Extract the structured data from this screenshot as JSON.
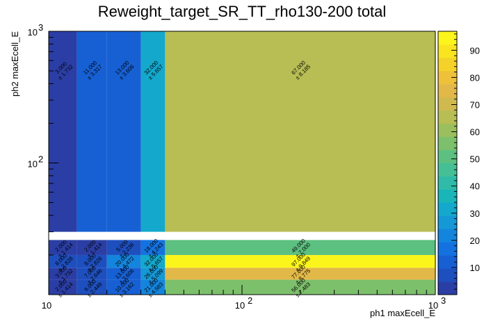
{
  "chart_data": {
    "type": "heatmap",
    "title": "Reweight_target_SR_TT_rho130-200 total",
    "xlabel": "ph1 maxEcell_E",
    "ylabel": "ph2 maxEcell_E",
    "xscale": "log",
    "yscale": "log",
    "xlim": [
      10,
      1000
    ],
    "ylim": [
      10,
      1000
    ],
    "x_edges": [
      10,
      14,
      20,
      30,
      40,
      1000
    ],
    "y_edges": [
      10,
      13,
      16,
      20,
      26,
      30,
      1000
    ],
    "x_ticks": [
      {
        "value": 10,
        "base": "10",
        "exp": ""
      },
      {
        "value": 100,
        "base": "10",
        "exp": "2"
      },
      {
        "value": 1000,
        "base": "10",
        "exp": "3"
      }
    ],
    "y_ticks": [
      {
        "value": 100,
        "base": "10",
        "exp": "2"
      },
      {
        "value": 1000,
        "base": "10",
        "exp": "3"
      }
    ],
    "zlim": [
      0,
      97
    ],
    "palette_ticks": [
      10,
      20,
      30,
      40,
      50,
      60,
      70,
      80,
      90
    ],
    "palette_colors": [
      "#2b3ea5",
      "#1e4fbf",
      "#1760d4",
      "#1472e0",
      "#1485dd",
      "#1598d6",
      "#14a8cc",
      "#19b5b8",
      "#2fbba7",
      "#45bf95",
      "#5cc080",
      "#7dc06b",
      "#9bbf5d",
      "#b8bd54",
      "#d0ba4f",
      "#e2b848",
      "#efc03a",
      "#f5d22a",
      "#f9e41f",
      "#fbf51c"
    ],
    "cells": [
      {
        "x": 0,
        "y": 0,
        "value": "2.000",
        "error": "± 1.414",
        "z": 2
      },
      {
        "x": 1,
        "y": 0,
        "value": "6.000",
        "error": "± 2.449",
        "z": 6
      },
      {
        "x": 2,
        "y": 0,
        "value": "10.000",
        "error": "± 3.162",
        "z": 10
      },
      {
        "x": 3,
        "y": 0,
        "value": "21.000",
        "error": "± 4.583",
        "z": 21
      },
      {
        "x": 4,
        "y": 0,
        "value": "56.000",
        "error": "± 7.483",
        "z": 56
      },
      {
        "x": 0,
        "y": 1,
        "value": "3.000",
        "error": "± 1.732",
        "z": 3
      },
      {
        "x": 1,
        "y": 1,
        "value": "7.000",
        "error": "± 2.646",
        "z": 7
      },
      {
        "x": 2,
        "y": 1,
        "value": "13.000",
        "error": "± 3.606",
        "z": 13
      },
      {
        "x": 3,
        "y": 1,
        "value": "26.000",
        "error": "± 5.099",
        "z": 26
      },
      {
        "x": 4,
        "y": 1,
        "value": "77.000",
        "error": "± 8.775",
        "z": 77
      },
      {
        "x": 0,
        "y": 2,
        "value": "8.000",
        "error": "± 2.828",
        "z": 8
      },
      {
        "x": 1,
        "y": 2,
        "value": "8.000",
        "error": "± 2.828",
        "z": 8
      },
      {
        "x": 2,
        "y": 2,
        "value": "20.000",
        "error": "± 4.472",
        "z": 20
      },
      {
        "x": 3,
        "y": 2,
        "value": "32.000",
        "error": "± 5.657",
        "z": 32
      },
      {
        "x": 4,
        "y": 2,
        "value": "97.000",
        "error": "± 9.849",
        "z": 97
      },
      {
        "x": 0,
        "y": 3,
        "value": "2.000",
        "error": "± 1.414",
        "z": 2
      },
      {
        "x": 1,
        "y": 3,
        "value": "2.000",
        "error": "± 1.414",
        "z": 2
      },
      {
        "x": 2,
        "y": 3,
        "value": "5.000",
        "error": "± 2.236",
        "z": 5
      },
      {
        "x": 3,
        "y": 3,
        "value": "18.000",
        "error": "± 4.243",
        "z": 18
      },
      {
        "x": 4,
        "y": 3,
        "value": "49.000",
        "error": "± 7.000",
        "z": 49
      },
      {
        "x": 0,
        "y": 5,
        "value": "3.000",
        "error": "± 1.732",
        "z": 3
      },
      {
        "x": 1,
        "y": 5,
        "value": "11.000",
        "error": "± 3.317",
        "z": 11
      },
      {
        "x": 2,
        "y": 5,
        "value": "13.000",
        "error": "± 3.606",
        "z": 13
      },
      {
        "x": 3,
        "y": 5,
        "value": "32.000",
        "error": "± 5.657",
        "z": 32
      },
      {
        "x": 4,
        "y": 5,
        "value": "67.000",
        "error": "± 8.185",
        "z": 67
      }
    ]
  }
}
